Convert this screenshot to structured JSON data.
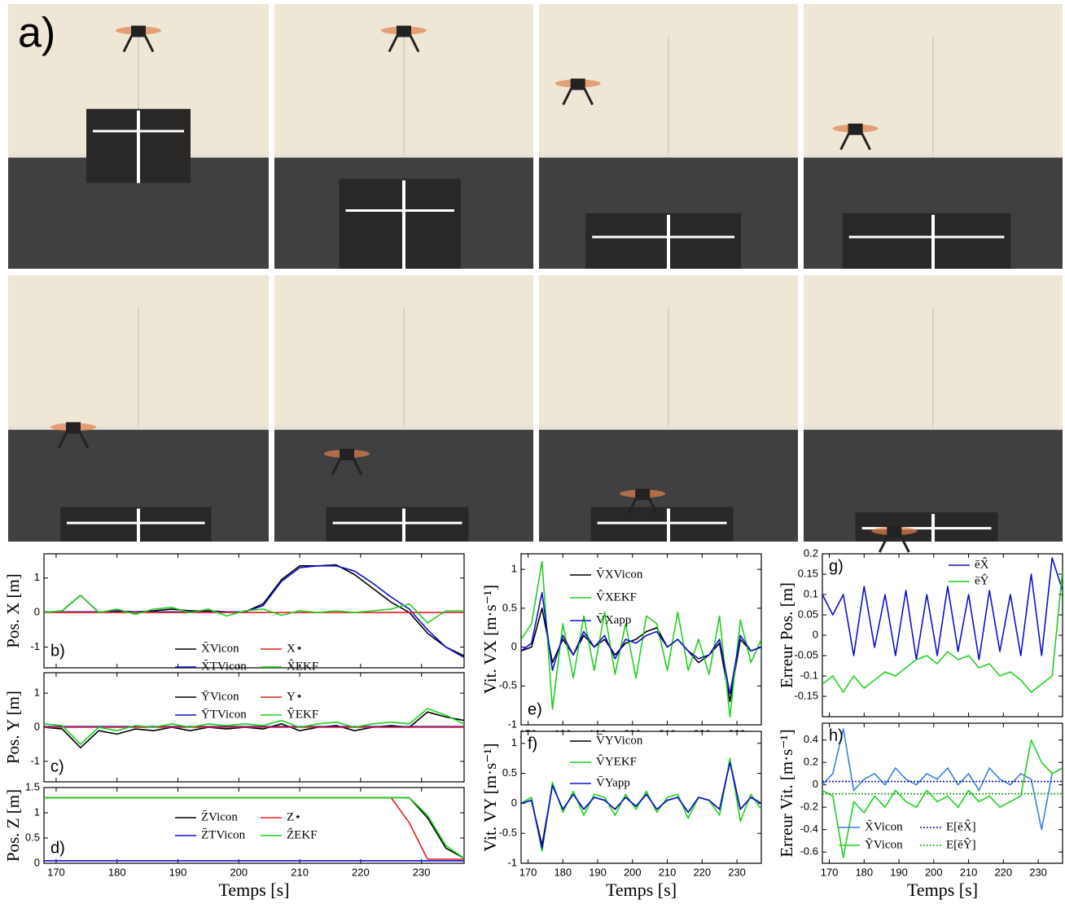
{
  "panel_label": "a)",
  "chart_data": [
    {
      "type": "line",
      "panel_label": "b)",
      "y_label": "Pos.  X [m]",
      "x": [
        168,
        171,
        174,
        177,
        180,
        183,
        186,
        189,
        192,
        195,
        198,
        201,
        204,
        207,
        210,
        213,
        216,
        219,
        222,
        225,
        228,
        231,
        234,
        237
      ],
      "xlim": [
        168,
        237
      ],
      "xticks": [
        170,
        180,
        190,
        200,
        210,
        220,
        230
      ],
      "ylim": [
        -1.6,
        1.7
      ],
      "yticks": [
        -1,
        0,
        1
      ],
      "series": [
        {
          "name": "X̄Vicon",
          "color": "#000000",
          "values": [
            0,
            0.05,
            0.5,
            0,
            0.05,
            0.02,
            0.05,
            0.1,
            0.05,
            0.05,
            0.02,
            0.02,
            0.25,
            0.95,
            1.35,
            1.35,
            1.38,
            1.1,
            0.7,
            0.3,
            0,
            -0.6,
            -1,
            -1.25
          ]
        },
        {
          "name": "X̄TVicon",
          "color": "#1010d0",
          "values": [
            0.02,
            0.02,
            0.02,
            0.02,
            0.02,
            0.02,
            0.02,
            0.02,
            0.02,
            0.02,
            0.02,
            0.02,
            0.2,
            0.9,
            1.3,
            1.35,
            1.35,
            1.2,
            0.85,
            0.45,
            0.1,
            -0.5,
            -1,
            -1.3
          ]
        },
        {
          "name": "X⋆",
          "color": "#e02020",
          "values": [
            0,
            0,
            0,
            0,
            0,
            0,
            0,
            0,
            0,
            0,
            0,
            0,
            0,
            0,
            0,
            0,
            0,
            0,
            0,
            0,
            0,
            0,
            0,
            0
          ]
        },
        {
          "name": "X̂EKF",
          "color": "#20d020",
          "values": [
            0,
            0.05,
            0.5,
            0,
            0.1,
            -0.05,
            0.1,
            0.15,
            0,
            0.1,
            -0.1,
            0.05,
            0.1,
            -0.08,
            0.05,
            0,
            0.05,
            0,
            0.05,
            0.1,
            0.25,
            -0.3,
            0.05,
            0.05
          ]
        }
      ]
    },
    {
      "type": "line",
      "panel_label": "c)",
      "y_label": "Pos.  Y [m]",
      "x": [
        168,
        171,
        174,
        177,
        180,
        183,
        186,
        189,
        192,
        195,
        198,
        201,
        204,
        207,
        210,
        213,
        216,
        219,
        222,
        225,
        228,
        231,
        234,
        237
      ],
      "xlim": [
        168,
        237
      ],
      "xticks": [
        170,
        180,
        190,
        200,
        210,
        220,
        230
      ],
      "ylim": [
        -1.6,
        1.6
      ],
      "yticks": [
        -1,
        0,
        1
      ],
      "series": [
        {
          "name": "ȲVicon",
          "color": "#000000",
          "values": [
            0,
            -0.05,
            -0.6,
            -0.1,
            -0.2,
            -0.05,
            -0.1,
            0,
            -0.1,
            0,
            -0.05,
            0,
            -0.05,
            0.1,
            -0.1,
            0,
            0.05,
            -0.1,
            0,
            0.05,
            0,
            0.45,
            0.3,
            0.2
          ]
        },
        {
          "name": "ȲTVicon",
          "color": "#1010d0",
          "values": [
            0.02,
            0.02,
            0.02,
            0.02,
            0.02,
            0.02,
            0.02,
            0.02,
            0.02,
            0.02,
            0.02,
            0.02,
            0.02,
            0.02,
            0.02,
            0.02,
            0.02,
            0.02,
            0.02,
            0.02,
            0.02,
            0.02,
            0.02,
            0.02
          ]
        },
        {
          "name": "Y⋆",
          "color": "#e02020",
          "values": [
            0,
            0,
            0,
            0,
            0,
            0,
            0,
            0,
            0,
            0,
            0,
            0,
            0,
            0,
            0,
            0,
            0,
            0,
            0,
            0,
            0,
            0,
            0,
            0
          ]
        },
        {
          "name": "ŶEKF",
          "color": "#20d020",
          "values": [
            0.1,
            0.05,
            -0.5,
            0,
            -0.1,
            0.05,
            0,
            0.1,
            0,
            0.1,
            0.05,
            0.1,
            0.05,
            0.2,
            0,
            0.1,
            0.15,
            0,
            0.1,
            0.15,
            0.1,
            0.55,
            0.35,
            0.1
          ]
        }
      ]
    },
    {
      "type": "line",
      "panel_label": "d)",
      "y_label": "Pos.  Z [m]",
      "x_label": "Temps [s]",
      "x": [
        168,
        171,
        174,
        177,
        180,
        183,
        186,
        189,
        192,
        195,
        198,
        201,
        204,
        207,
        210,
        213,
        216,
        219,
        222,
        225,
        228,
        231,
        234,
        237
      ],
      "xlim": [
        168,
        237
      ],
      "xticks": [
        170,
        180,
        190,
        200,
        210,
        220,
        230
      ],
      "ylim": [
        0,
        1.5
      ],
      "yticks": [
        0,
        0.5,
        1,
        1.5
      ],
      "series": [
        {
          "name": "Z̄Vicon",
          "color": "#000000",
          "values": [
            1.3,
            1.3,
            1.3,
            1.3,
            1.3,
            1.3,
            1.3,
            1.3,
            1.3,
            1.3,
            1.3,
            1.3,
            1.3,
            1.3,
            1.3,
            1.3,
            1.3,
            1.3,
            1.3,
            1.3,
            1.3,
            0.9,
            0.3,
            0.1
          ]
        },
        {
          "name": "Z̄TVicon",
          "color": "#1010d0",
          "values": [
            0.05,
            0.05,
            0.05,
            0.05,
            0.05,
            0.05,
            0.05,
            0.05,
            0.05,
            0.05,
            0.05,
            0.05,
            0.05,
            0.05,
            0.05,
            0.05,
            0.05,
            0.05,
            0.05,
            0.05,
            0.05,
            0.05,
            0.05,
            0.05
          ]
        },
        {
          "name": "Z⋆",
          "color": "#e02020",
          "values": [
            1.3,
            1.3,
            1.3,
            1.3,
            1.3,
            1.3,
            1.3,
            1.3,
            1.3,
            1.3,
            1.3,
            1.3,
            1.3,
            1.3,
            1.3,
            1.3,
            1.3,
            1.3,
            1.3,
            1.3,
            0.8,
            0.08,
            0.08,
            0.08
          ]
        },
        {
          "name": "ẐEKF",
          "color": "#20d020",
          "values": [
            1.3,
            1.3,
            1.3,
            1.3,
            1.3,
            1.3,
            1.3,
            1.3,
            1.3,
            1.3,
            1.3,
            1.3,
            1.3,
            1.3,
            1.3,
            1.3,
            1.3,
            1.3,
            1.3,
            1.3,
            1.3,
            0.95,
            0.35,
            0.1
          ]
        }
      ]
    },
    {
      "type": "line",
      "panel_label": "e)",
      "y_label": "Vit.  VX [m·s⁻¹]",
      "x": [
        168,
        171,
        174,
        177,
        180,
        183,
        186,
        189,
        192,
        195,
        198,
        201,
        204,
        207,
        210,
        213,
        216,
        219,
        222,
        225,
        228,
        231,
        234,
        237
      ],
      "xlim": [
        168,
        237
      ],
      "xticks": [
        170,
        180,
        190,
        200,
        210,
        220,
        230
      ],
      "ylim": [
        -1,
        1.2
      ],
      "yticks": [
        -1,
        -0.5,
        0,
        0.5,
        1
      ],
      "series": [
        {
          "name": "V̄XVicon",
          "color": "#000000",
          "values": [
            -0.05,
            0,
            0.5,
            -0.2,
            0.1,
            -0.1,
            0.15,
            0,
            0.1,
            -0.1,
            0.05,
            0.1,
            0.2,
            0.25,
            0,
            0.1,
            -0.05,
            -0.2,
            -0.1,
            0.05,
            -0.7,
            0.1,
            -0.05,
            0
          ]
        },
        {
          "name": "V̂XEKF",
          "color": "#20d020",
          "values": [
            0.1,
            0.3,
            1.1,
            -0.8,
            0.3,
            -0.4,
            0.4,
            -0.3,
            0.45,
            -0.35,
            0.3,
            -0.4,
            0.4,
            0.3,
            -0.3,
            0.45,
            -0.3,
            0.1,
            -0.35,
            0.4,
            -0.9,
            0.35,
            -0.2,
            0.1
          ]
        },
        {
          "name": "V̄Xapp",
          "color": "#1010d0",
          "values": [
            -0.05,
            0.05,
            0.7,
            -0.3,
            0.15,
            -0.1,
            0.2,
            0,
            0.15,
            -0.15,
            0.1,
            0.05,
            0.15,
            0.2,
            0,
            0.1,
            -0.05,
            -0.15,
            -0.1,
            0.1,
            -0.6,
            0.15,
            -0.05,
            0
          ]
        }
      ]
    },
    {
      "type": "line",
      "panel_label": "f)",
      "y_label": "Vit.  VY [m·s⁻¹]",
      "x_label": "Temps [s]",
      "x": [
        168,
        171,
        174,
        177,
        180,
        183,
        186,
        189,
        192,
        195,
        198,
        201,
        204,
        207,
        210,
        213,
        216,
        219,
        222,
        225,
        228,
        231,
        234,
        237
      ],
      "xlim": [
        168,
        237
      ],
      "xticks": [
        170,
        180,
        190,
        200,
        210,
        220,
        230
      ],
      "ylim": [
        -1,
        1.2
      ],
      "yticks": [
        -1,
        -0.5,
        0,
        0.5,
        1
      ],
      "series": [
        {
          "name": "V̄YVicon",
          "color": "#000000",
          "values": [
            0,
            0.05,
            -0.7,
            0.3,
            -0.1,
            0.15,
            -0.1,
            0.1,
            0.05,
            -0.1,
            0.1,
            -0.05,
            0.15,
            -0.1,
            0.05,
            0.1,
            -0.15,
            0.1,
            0.05,
            -0.1,
            0.7,
            -0.1,
            0.1,
            0
          ]
        },
        {
          "name": "V̂YEKF",
          "color": "#20d020",
          "values": [
            0,
            0.1,
            -0.8,
            0.35,
            -0.15,
            0.2,
            -0.2,
            0.15,
            0.1,
            -0.2,
            0.15,
            -0.1,
            0.2,
            -0.15,
            0.1,
            0.15,
            -0.25,
            0.1,
            0.05,
            -0.2,
            0.75,
            -0.3,
            0.15,
            -0.1
          ]
        },
        {
          "name": "V̄Yapp",
          "color": "#1010d0",
          "values": [
            0,
            0.05,
            -0.75,
            0.3,
            -0.1,
            0.15,
            -0.1,
            0.1,
            0.05,
            -0.1,
            0.1,
            -0.05,
            0.15,
            -0.1,
            0.05,
            0.1,
            -0.15,
            0.1,
            0.05,
            -0.1,
            0.68,
            -0.1,
            0.1,
            0
          ]
        }
      ]
    },
    {
      "type": "line",
      "panel_label": "g)",
      "y_label": "Erreur Pos. [m]",
      "x": [
        168,
        171,
        174,
        177,
        180,
        183,
        186,
        189,
        192,
        195,
        198,
        201,
        204,
        207,
        210,
        213,
        216,
        219,
        222,
        225,
        228,
        231,
        234,
        237
      ],
      "xlim": [
        168,
        237
      ],
      "xticks": [
        170,
        180,
        190,
        200,
        210,
        220,
        230
      ],
      "ylim": [
        -0.2,
        0.2
      ],
      "yticks": [
        -0.15,
        -0.1,
        -0.05,
        0,
        0.05,
        0.1,
        0.15,
        0.2
      ],
      "series": [
        {
          "name": "ēX̂",
          "color": "#1010d0",
          "values": [
            0.1,
            0.05,
            0.1,
            -0.05,
            0.12,
            -0.03,
            0.1,
            -0.05,
            0.11,
            -0.06,
            0.1,
            -0.05,
            0.12,
            -0.04,
            0.1,
            -0.06,
            0.11,
            -0.04,
            0.1,
            -0.05,
            0.15,
            -0.05,
            0.19,
            0.11
          ]
        },
        {
          "name": "ēŶ",
          "color": "#20d020",
          "values": [
            -0.12,
            -0.1,
            -0.14,
            -0.1,
            -0.13,
            -0.11,
            -0.09,
            -0.1,
            -0.08,
            -0.06,
            -0.05,
            -0.07,
            -0.04,
            -0.06,
            -0.05,
            -0.08,
            -0.07,
            -0.1,
            -0.09,
            -0.11,
            -0.14,
            -0.12,
            -0.1,
            0.16
          ]
        }
      ]
    },
    {
      "type": "line",
      "panel_label": "h)",
      "y_label": "Erreur Vit. [m·s⁻¹]",
      "x_label": "Temps [s]",
      "x": [
        168,
        171,
        174,
        177,
        180,
        183,
        186,
        189,
        192,
        195,
        198,
        201,
        204,
        207,
        210,
        213,
        216,
        219,
        222,
        225,
        228,
        231,
        234,
        237
      ],
      "xlim": [
        168,
        237
      ],
      "xticks": [
        170,
        180,
        190,
        200,
        210,
        220,
        230
      ],
      "ylim": [
        -0.7,
        0.55
      ],
      "yticks": [
        -0.6,
        -0.4,
        -0.2,
        0,
        0.2,
        0.4
      ],
      "series": [
        {
          "name": "X̃Vicon",
          "color": "#3a7ee0",
          "values": [
            0,
            0.1,
            0.5,
            -0.05,
            0.05,
            0.1,
            0,
            0.15,
            0.05,
            0,
            0.1,
            0.05,
            0.15,
            0,
            0.1,
            -0.05,
            0.15,
            0.05,
            0,
            0.1,
            0.05,
            -0.4,
            0.1,
            0.15
          ]
        },
        {
          "name": "ỸVicon",
          "color": "#20d020",
          "values": [
            -0.05,
            -0.1,
            -0.65,
            -0.15,
            -0.25,
            -0.1,
            -0.2,
            -0.05,
            -0.15,
            -0.2,
            -0.05,
            -0.15,
            -0.1,
            -0.2,
            -0.05,
            -0.15,
            -0.1,
            -0.2,
            -0.15,
            -0.1,
            0.4,
            0.2,
            0.1,
            0.15
          ]
        },
        {
          "name": "E[ēX̂]",
          "color": "#1010a0",
          "dash": true,
          "values": [
            0.03,
            0.03,
            0.03,
            0.03,
            0.03,
            0.03,
            0.03,
            0.03,
            0.03,
            0.03,
            0.03,
            0.03,
            0.03,
            0.03,
            0.03,
            0.03,
            0.03,
            0.03,
            0.03,
            0.03,
            0.03,
            0.03,
            0.03,
            0.03
          ]
        },
        {
          "name": "E[ēŶ]",
          "color": "#10a010",
          "dash": true,
          "values": [
            -0.08,
            -0.08,
            -0.08,
            -0.08,
            -0.08,
            -0.08,
            -0.08,
            -0.08,
            -0.08,
            -0.08,
            -0.08,
            -0.08,
            -0.08,
            -0.08,
            -0.08,
            -0.08,
            -0.08,
            -0.08,
            -0.08,
            -0.08,
            -0.08,
            -0.08,
            -0.08,
            -0.08
          ]
        }
      ]
    }
  ]
}
